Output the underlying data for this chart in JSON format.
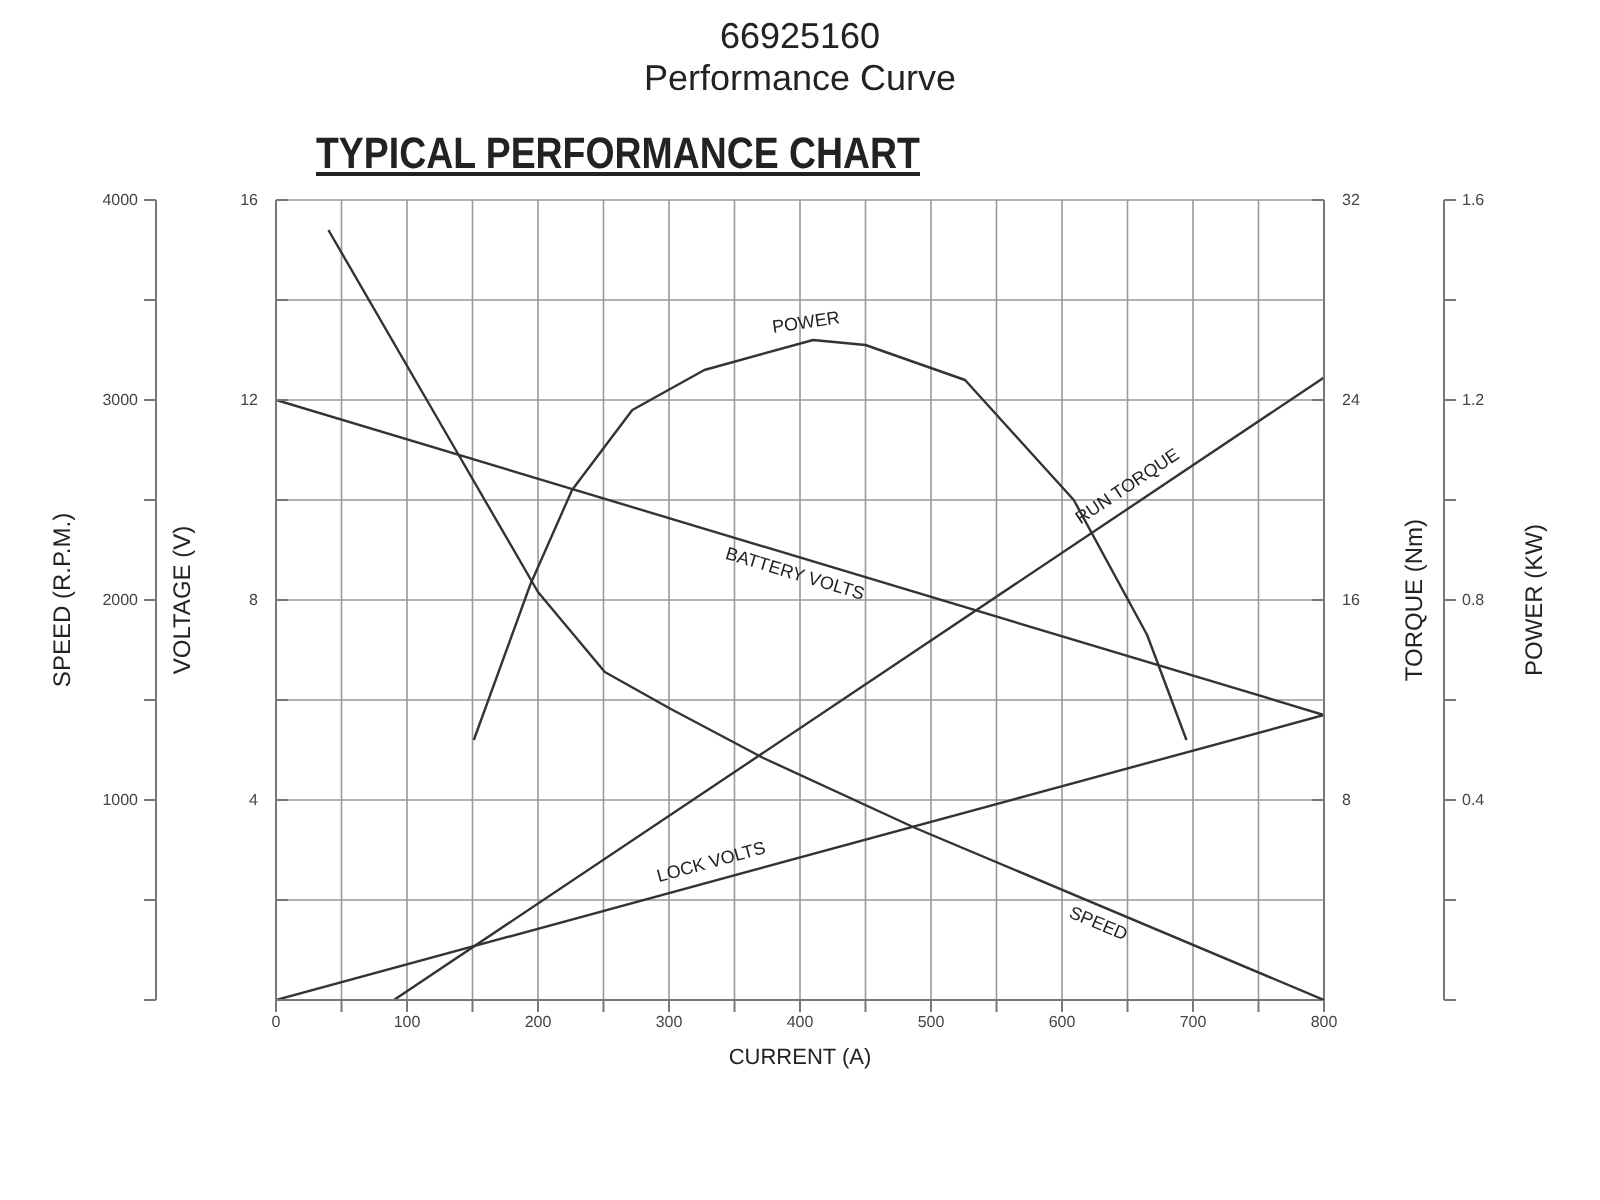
{
  "chart_data": [
    {
      "type": "line",
      "title": "66925160",
      "subtitle": "Performance Curve",
      "annotations": [
        "TYPICAL PERFORMANCE CHART"
      ],
      "xlabel": "CURRENT (A)",
      "ylabel": "VOLTAGE (V)",
      "y2label": "TORQUE (Nm)",
      "xlim": [
        0,
        800
      ],
      "xticks": [
        0,
        {
          "value": 50,
          "label": null
        },
        100,
        {
          "value": 150,
          "label": null
        },
        200,
        {
          "value": 250,
          "label": null
        },
        300,
        {
          "value": 350,
          "label": null
        },
        400,
        {
          "value": 450,
          "label": null
        },
        500,
        {
          "value": 550,
          "label": null
        },
        600,
        {
          "value": 650,
          "label": null
        },
        700,
        {
          "value": 750,
          "label": null
        },
        800
      ],
      "ylim": [
        0,
        16
      ],
      "yticks": [
        {
          "value": 0,
          "label": null
        },
        {
          "value": 2,
          "label": null
        },
        4,
        {
          "value": 6,
          "label": null
        },
        8,
        {
          "value": 10,
          "label": null
        },
        12,
        {
          "value": 14,
          "label": null
        },
        16
      ],
      "y2lim": [
        0,
        32
      ],
      "y2ticks": [
        8,
        16,
        24,
        32
      ],
      "grid": true,
      "marker": "none",
      "line_style": "solid",
      "series": [
        {
          "name": "BATTERY VOLTS",
          "color": "#333333",
          "x": [
            0,
            800
          ],
          "values": [
            12,
            5.7
          ]
        },
        {
          "name": "RUN TORQUE",
          "color": "#333333",
          "axis": "y2",
          "x": [
            90,
            800
          ],
          "values": [
            0,
            24.9
          ]
        },
        {
          "name": "LOCK VOLTS",
          "color": "#333333",
          "x": [
            0,
            800
          ],
          "values": [
            0,
            5.7
          ]
        }
      ]
    },
    {
      "type": "line",
      "ylabel": "SPEED (R.P.M.)",
      "y2label": "POWER (KW)",
      "tick_labels": "y",
      "xlim": [
        0,
        800
      ],
      "ylim": [
        0,
        4000
      ],
      "yticks": [
        {
          "value": 0,
          "label": null
        },
        {
          "value": 500,
          "label": null
        },
        1000,
        {
          "value": 1500,
          "label": null
        },
        2000,
        {
          "value": 2500,
          "label": null
        },
        3000,
        {
          "value": 3500,
          "label": null
        },
        4000
      ],
      "y2lim": [
        0,
        1.6
      ],
      "y2ticks": [
        {
          "value": 0,
          "label": null
        },
        {
          "value": 0.2,
          "label": null
        },
        0.4,
        {
          "value": 0.6,
          "label": null
        },
        0.8,
        {
          "value": 1,
          "label": null
        },
        1.2,
        {
          "value": 1.4,
          "label": null
        },
        1.6
      ],
      "marker": "none",
      "line_style": "solid",
      "series": [
        {
          "name": "POWER",
          "color": "#333333",
          "axis": "y2",
          "x": [
            151,
            194,
            226,
            272,
            327,
            410,
            450,
            526,
            609,
            665,
            695
          ],
          "values": [
            0.52,
            0.83,
            1.02,
            1.18,
            1.26,
            1.32,
            1.31,
            1.24,
            1.0,
            0.73,
            0.52
          ]
        },
        {
          "name": "SPEED",
          "color": "#333333",
          "x": [
            40,
            139,
            200,
            251,
            300,
            372,
            488,
            800
          ],
          "values": [
            3850,
            2730,
            2040,
            1640,
            1460,
            1210,
            860,
            0
          ]
        }
      ]
    }
  ]
}
